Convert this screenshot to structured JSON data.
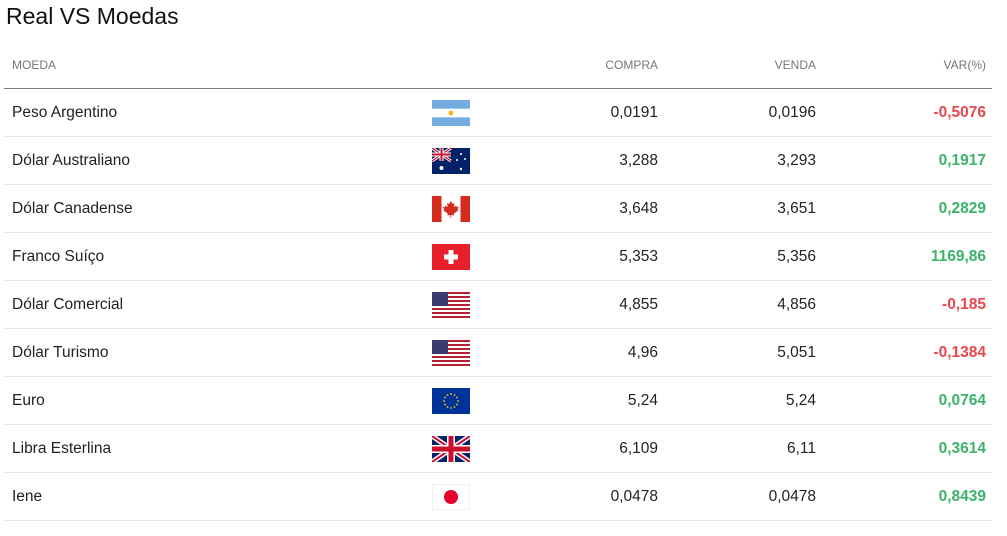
{
  "page": {
    "title": "Real VS Moedas"
  },
  "table": {
    "headers": {
      "currency": "MOEDA",
      "buy": "COMPRA",
      "sell": "VENDA",
      "var": "VAR(%)"
    },
    "rows": [
      {
        "name": "Peso Argentino",
        "flag": "argentina-flag-icon",
        "buy": "0,0191",
        "sell": "0,0196",
        "var": "-0,5076"
      },
      {
        "name": "Dólar Australiano",
        "flag": "australia-flag-icon",
        "buy": "3,288",
        "sell": "3,293",
        "var": "0,1917"
      },
      {
        "name": "Dólar Canadense",
        "flag": "canada-flag-icon",
        "buy": "3,648",
        "sell": "3,651",
        "var": "0,2829"
      },
      {
        "name": "Franco Suíço",
        "flag": "switzerland-flag-icon",
        "buy": "5,353",
        "sell": "5,356",
        "var": "1169,86"
      },
      {
        "name": "Dólar Comercial",
        "flag": "usa-flag-icon",
        "buy": "4,855",
        "sell": "4,856",
        "var": "-0,185"
      },
      {
        "name": "Dólar Turismo",
        "flag": "usa-flag-icon",
        "buy": "4,96",
        "sell": "5,051",
        "var": "-0,1384"
      },
      {
        "name": "Euro",
        "flag": "eu-flag-icon",
        "buy": "5,24",
        "sell": "5,24",
        "var": "0,0764"
      },
      {
        "name": "Libra Esterlina",
        "flag": "uk-flag-icon",
        "buy": "6,109",
        "sell": "6,11",
        "var": "0,3614"
      },
      {
        "name": "Iene",
        "flag": "japan-flag-icon",
        "buy": "0,0478",
        "sell": "0,0478",
        "var": "0,8439"
      }
    ]
  },
  "colors": {
    "positive": "#3bb36a",
    "negative": "#e8474d"
  }
}
